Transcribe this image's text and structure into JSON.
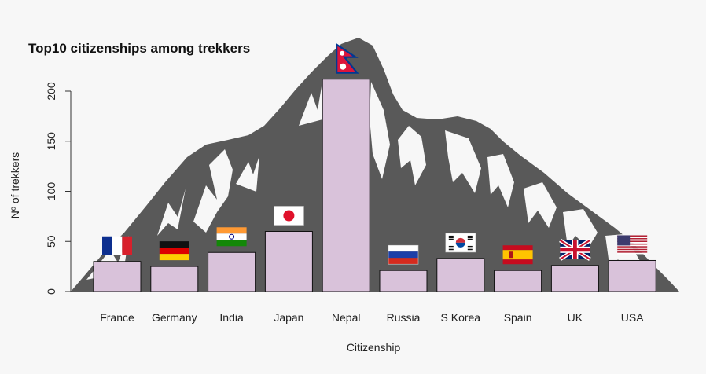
{
  "chart_data": {
    "type": "bar",
    "title": "Top10 citizenships among trekkers",
    "xlabel": "Citizenship",
    "ylabel": "Nº of trekkers",
    "ylim": [
      0,
      220
    ],
    "yticks": [
      0,
      50,
      100,
      150,
      200
    ],
    "categories": [
      "France",
      "Germany",
      "India",
      "Japan",
      "Nepal",
      "Russia",
      "S Korea",
      "Spain",
      "UK",
      "USA"
    ],
    "values": [
      30,
      25,
      39,
      60,
      212,
      21,
      33,
      21,
      26,
      31
    ],
    "flags": [
      "france-flag-icon",
      "germany-flag-icon",
      "india-flag-icon",
      "japan-flag-icon",
      "nepal-flag-icon",
      "russia-flag-icon",
      "south-korea-flag-icon",
      "spain-flag-icon",
      "uk-flag-icon",
      "usa-flag-icon"
    ],
    "background_image": "mountain-silhouette-icon",
    "bar_color": "#d9c2da",
    "bar_border_color": "#111111",
    "mountain_color": "#595959",
    "grid": false
  }
}
